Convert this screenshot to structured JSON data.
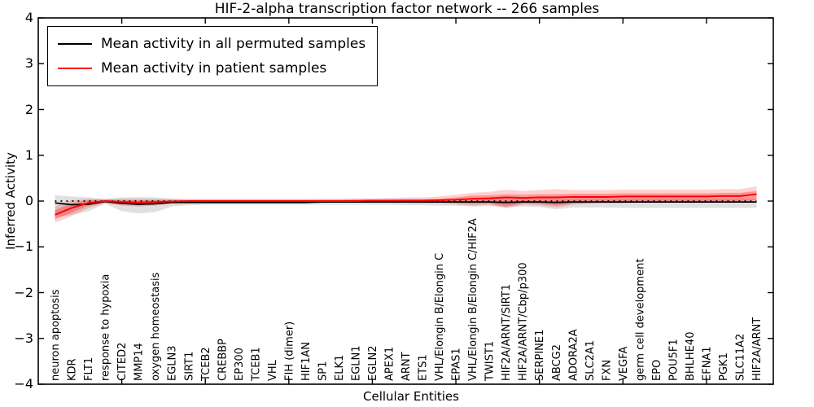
{
  "figure": {
    "title": "HIF-2-alpha transcription factor network -- 266 samples"
  },
  "legend": {
    "items": [
      {
        "label": "Mean activity in all permuted samples",
        "color": "#000000"
      },
      {
        "label": "Mean activity in patient samples",
        "color": "#ff0000"
      }
    ]
  },
  "colors": {
    "background": "#ffffff",
    "spine": "#000000",
    "permuted_line": "#000000",
    "patient_line": "#ff0000",
    "permuted_band": "rgba(0,0,0,0.12)",
    "patient_band_outer": "rgba(255,0,0,0.18)",
    "patient_band_inner": "rgba(255,0,0,0.28)",
    "zero_line": "#000000"
  },
  "chart_data": {
    "type": "line",
    "title": "HIF-2-alpha transcription factor network -- 266 samples",
    "xlabel": "Cellular Entities",
    "ylabel": "Inferred Activity",
    "ylim": [
      -4,
      4
    ],
    "yticks": [
      4,
      3,
      2,
      1,
      0,
      -1,
      -2,
      -3,
      -4
    ],
    "grid": false,
    "legend_position": "upper left",
    "zero_line": true,
    "categories": [
      "neuron apoptosis",
      "KDR",
      "FLT1",
      "response to hypoxia",
      "CITED2",
      "MMP14",
      "oxygen homeostasis",
      "EGLN3",
      "SIRT1",
      "TCEB2",
      "CREBBP",
      "EP300",
      "TCEB1",
      "VHL",
      "FIH (dimer)",
      "HIF1AN",
      "SP1",
      "ELK1",
      "EGLN1",
      "EGLN2",
      "APEX1",
      "ARNT",
      "ETS1",
      "VHL/Elongin B/Elongin C",
      "EPAS1",
      "VHL/Elongin B/Elongin C/HIF2A",
      "TWIST1",
      "HIF2A/ARNT/SIRT1",
      "HIF2A/ARNT/Cbp/p300",
      "SERPINE1",
      "ABCG2",
      "ADORA2A",
      "SLC2A1",
      "FXN",
      "VEGFA",
      "germ cell development",
      "EPO",
      "POU5F1",
      "BHLHE40",
      "EFNA1",
      "PGK1",
      "SLC11A2",
      "HIF2A/ARNT"
    ],
    "series": [
      {
        "name": "Mean activity in all permuted samples",
        "kind": "line",
        "values": [
          -0.04,
          -0.08,
          -0.07,
          -0.01,
          -0.05,
          -0.07,
          -0.06,
          -0.03,
          -0.03,
          -0.03,
          -0.03,
          -0.03,
          -0.03,
          -0.03,
          -0.03,
          -0.03,
          -0.02,
          -0.02,
          -0.02,
          -0.02,
          -0.02,
          -0.02,
          -0.02,
          -0.02,
          -0.02,
          -0.02,
          -0.02,
          -0.03,
          -0.02,
          -0.02,
          -0.03,
          -0.02,
          -0.02,
          -0.02,
          -0.02,
          -0.02,
          -0.02,
          -0.02,
          -0.02,
          -0.02,
          -0.02,
          -0.02,
          -0.02
        ]
      },
      {
        "name": "Mean activity in patient samples",
        "kind": "line",
        "values": [
          -0.3,
          -0.15,
          -0.04,
          0.0,
          -0.02,
          -0.03,
          -0.02,
          -0.01,
          0.0,
          0.0,
          0.0,
          0.0,
          0.0,
          0.0,
          0.0,
          0.0,
          0.0,
          0.0,
          0.0,
          0.01,
          0.01,
          0.01,
          0.01,
          0.02,
          0.03,
          0.05,
          0.06,
          0.08,
          0.07,
          0.08,
          0.08,
          0.09,
          0.09,
          0.09,
          0.1,
          0.1,
          0.1,
          0.1,
          0.1,
          0.1,
          0.11,
          0.11,
          0.15
        ]
      }
    ],
    "bands": [
      {
        "name": "permuted-samples-band",
        "low": [
          -0.35,
          -0.3,
          -0.22,
          -0.06,
          -0.22,
          -0.27,
          -0.24,
          -0.12,
          -0.09,
          -0.08,
          -0.08,
          -0.08,
          -0.08,
          -0.08,
          -0.08,
          -0.08,
          -0.08,
          -0.08,
          -0.08,
          -0.08,
          -0.08,
          -0.09,
          -0.09,
          -0.1,
          -0.1,
          -0.12,
          -0.11,
          -0.13,
          -0.12,
          -0.13,
          -0.18,
          -0.14,
          -0.14,
          -0.14,
          -0.15,
          -0.15,
          -0.15,
          -0.15,
          -0.15,
          -0.15,
          -0.15,
          -0.15,
          -0.15
        ],
        "high": [
          0.13,
          0.1,
          0.08,
          0.04,
          0.08,
          0.09,
          0.08,
          0.05,
          0.04,
          0.04,
          0.04,
          0.04,
          0.04,
          0.04,
          0.04,
          0.04,
          0.04,
          0.04,
          0.04,
          0.04,
          0.04,
          0.04,
          0.04,
          0.04,
          0.04,
          0.05,
          0.05,
          0.05,
          0.05,
          0.05,
          0.05,
          0.05,
          0.05,
          0.05,
          0.05,
          0.05,
          0.05,
          0.05,
          0.05,
          0.05,
          0.05,
          0.05,
          0.05
        ]
      },
      {
        "name": "patient-samples-band-outer",
        "low": [
          -0.47,
          -0.33,
          -0.15,
          -0.05,
          -0.1,
          -0.12,
          -0.1,
          -0.06,
          -0.04,
          -0.03,
          -0.03,
          -0.03,
          -0.03,
          -0.03,
          -0.03,
          -0.03,
          -0.03,
          -0.03,
          -0.03,
          -0.03,
          -0.04,
          -0.04,
          -0.05,
          -0.05,
          -0.07,
          -0.1,
          -0.08,
          -0.16,
          -0.08,
          -0.09,
          -0.14,
          -0.08,
          -0.06,
          -0.05,
          -0.05,
          -0.04,
          -0.04,
          -0.04,
          -0.04,
          -0.04,
          -0.03,
          -0.03,
          0.0
        ],
        "high": [
          -0.12,
          0.02,
          0.05,
          0.05,
          0.05,
          0.05,
          0.05,
          0.05,
          0.04,
          0.04,
          0.04,
          0.04,
          0.04,
          0.04,
          0.04,
          0.04,
          0.05,
          0.05,
          0.06,
          0.06,
          0.07,
          0.08,
          0.08,
          0.1,
          0.14,
          0.18,
          0.2,
          0.25,
          0.22,
          0.24,
          0.26,
          0.24,
          0.24,
          0.24,
          0.25,
          0.25,
          0.25,
          0.25,
          0.25,
          0.25,
          0.26,
          0.26,
          0.32
        ]
      },
      {
        "name": "patient-samples-band-inner",
        "low": [
          -0.4,
          -0.25,
          -0.1,
          -0.03,
          -0.06,
          -0.08,
          -0.06,
          -0.04,
          -0.03,
          -0.02,
          -0.02,
          -0.02,
          -0.02,
          -0.02,
          -0.02,
          -0.02,
          -0.02,
          -0.02,
          -0.02,
          -0.02,
          -0.02,
          -0.02,
          -0.03,
          -0.03,
          -0.04,
          -0.06,
          -0.05,
          -0.12,
          -0.05,
          -0.06,
          -0.1,
          -0.05,
          -0.04,
          -0.03,
          -0.02,
          -0.02,
          -0.02,
          -0.01,
          -0.01,
          -0.01,
          0.0,
          0.0,
          0.02
        ],
        "high": [
          -0.2,
          -0.05,
          0.02,
          0.03,
          0.02,
          0.02,
          0.02,
          0.02,
          0.02,
          0.02,
          0.02,
          0.02,
          0.02,
          0.02,
          0.02,
          0.02,
          0.02,
          0.02,
          0.03,
          0.03,
          0.03,
          0.04,
          0.04,
          0.05,
          0.08,
          0.12,
          0.13,
          0.15,
          0.14,
          0.15,
          0.15,
          0.16,
          0.16,
          0.16,
          0.17,
          0.17,
          0.17,
          0.17,
          0.17,
          0.17,
          0.18,
          0.18,
          0.22
        ]
      }
    ],
    "xtick_units": [
      5,
      10,
      15,
      20,
      25,
      30,
      35,
      40
    ]
  }
}
